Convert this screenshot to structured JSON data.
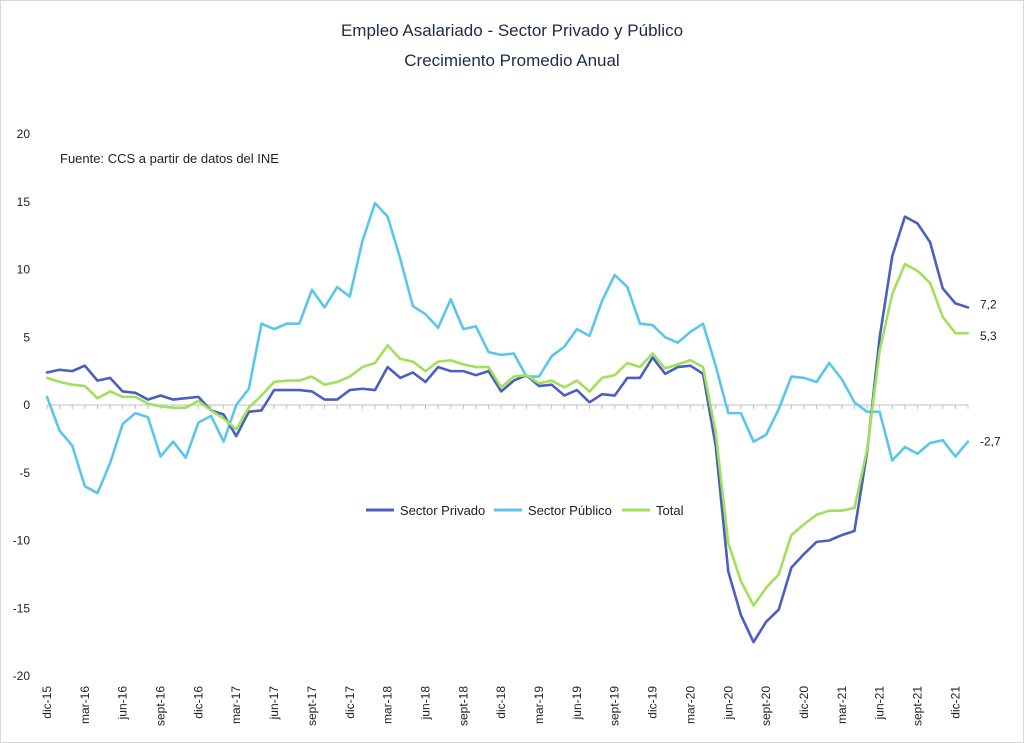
{
  "chart_data": {
    "type": "line",
    "title": "Empleo Asalariado - Sector Privado y Público",
    "subtitle": "Crecimiento Promedio Anual",
    "source": "Fuente: CCS a partir de datos del INE",
    "xlabel": "",
    "ylabel": "",
    "ylim": [
      -20,
      20
    ],
    "yticks": [
      20,
      15,
      10,
      5,
      0,
      -5,
      -10,
      -15,
      -20
    ],
    "grid": false,
    "legend_position": "center",
    "x_labels": [
      "dic-15",
      "mar-16",
      "jun-16",
      "sept-16",
      "dic-16",
      "mar-17",
      "jun-17",
      "sept-17",
      "dic-17",
      "mar-18",
      "jun-18",
      "sept-18",
      "dic-18",
      "mar-19",
      "jun-19",
      "sept-19",
      "dic-19",
      "mar-20",
      "jun-20",
      "sept-20",
      "dic-20",
      "mar-21",
      "jun-21",
      "sept-21",
      "dic-21"
    ],
    "x_label_every": 3,
    "series": [
      {
        "name": "Sector Privado",
        "color": "#4a5fc1",
        "end_label": "7,2",
        "values": [
          2.4,
          2.6,
          2.5,
          2.9,
          1.8,
          2.0,
          1.0,
          0.9,
          0.4,
          0.7,
          0.4,
          0.5,
          0.6,
          -0.4,
          -0.7,
          -2.3,
          -0.5,
          -0.4,
          1.1,
          1.1,
          1.1,
          1.0,
          0.4,
          0.4,
          1.1,
          1.2,
          1.1,
          2.8,
          2.0,
          2.4,
          1.7,
          2.8,
          2.5,
          2.5,
          2.2,
          2.5,
          1.0,
          1.8,
          2.2,
          1.4,
          1.5,
          0.7,
          1.1,
          0.2,
          0.8,
          0.7,
          2.0,
          2.0,
          3.5,
          2.3,
          2.8,
          2.9,
          2.3,
          -3.0,
          -12.3,
          -15.5,
          -17.5,
          -16.0,
          -15.1,
          -12.0,
          -11.0,
          -10.1,
          -10.0,
          -9.6,
          -9.3,
          -3.5,
          5.0,
          11.0,
          13.9,
          13.4,
          12.0,
          8.6,
          7.5,
          7.2
        ]
      },
      {
        "name": "Sector Público",
        "color": "#5bc6ec",
        "end_label": "-2,7",
        "values": [
          0.6,
          -1.9,
          -3.0,
          -6.0,
          -6.5,
          -4.3,
          -1.4,
          -0.6,
          -0.9,
          -3.8,
          -2.7,
          -3.9,
          -1.3,
          -0.8,
          -2.7,
          0.0,
          1.2,
          6.0,
          5.6,
          6.0,
          6.0,
          8.5,
          7.2,
          8.7,
          8.0,
          12.1,
          14.9,
          13.9,
          10.8,
          7.3,
          6.7,
          5.7,
          7.8,
          5.6,
          5.8,
          3.9,
          3.7,
          3.8,
          2.1,
          2.1,
          3.6,
          4.3,
          5.6,
          5.1,
          7.7,
          9.6,
          8.7,
          6.0,
          5.9,
          5.0,
          4.6,
          5.4,
          6.0,
          2.9,
          -0.6,
          -0.6,
          -2.7,
          -2.2,
          -0.3,
          2.1,
          2.0,
          1.7,
          3.1,
          1.9,
          0.2,
          -0.5,
          -0.5,
          -4.1,
          -3.1,
          -3.6,
          -2.8,
          -2.6,
          -3.8,
          -2.7
        ]
      },
      {
        "name": "Total",
        "color": "#a1e05a",
        "end_label": "5,3",
        "values": [
          2.0,
          1.7,
          1.5,
          1.4,
          0.5,
          1.0,
          0.6,
          0.6,
          0.1,
          -0.1,
          -0.2,
          -0.2,
          0.3,
          -0.4,
          -1.0,
          -1.8,
          -0.2,
          0.7,
          1.7,
          1.8,
          1.8,
          2.1,
          1.5,
          1.7,
          2.1,
          2.8,
          3.1,
          4.4,
          3.4,
          3.2,
          2.5,
          3.2,
          3.3,
          3.0,
          2.8,
          2.8,
          1.3,
          2.1,
          2.2,
          1.6,
          1.8,
          1.3,
          1.8,
          1.0,
          2.0,
          2.2,
          3.1,
          2.8,
          3.8,
          2.7,
          3.0,
          3.3,
          2.8,
          -2.0,
          -10.2,
          -13.0,
          -14.8,
          -13.5,
          -12.5,
          -9.6,
          -8.8,
          -8.1,
          -7.8,
          -7.8,
          -7.6,
          -3.3,
          4.0,
          8.2,
          10.4,
          9.9,
          9.0,
          6.5,
          5.3,
          5.3
        ]
      }
    ]
  }
}
